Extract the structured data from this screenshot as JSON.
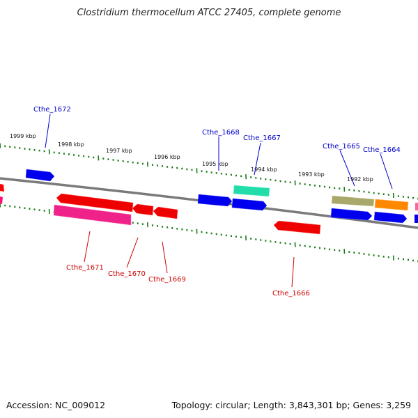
{
  "title": "Clostridium thermocellum ATCC 27405, complete genome",
  "footer": {
    "accession": "Accession: NC_009012",
    "info": "Topology: circular; Length: 3,843,301 bp; Genes: 3,259"
  },
  "colors": {
    "backbone": "#808080",
    "ticks": "#1a7a1a",
    "top_label": "#0000cc",
    "bottom_label": "#cc0000"
  },
  "kbp_labels": [
    "1999 kbp",
    "1998 kbp",
    "1997 kbp",
    "1996 kbp",
    "1995 kbp",
    "1994 kbp",
    "1993 kbp",
    "1992 kbp"
  ],
  "gene_labels_top": [
    "Cthe_1672",
    "Cthe_1668",
    "Cthe_1667",
    "Cthe_1665",
    "Cthe_1664"
  ],
  "gene_labels_bottom": [
    "Cthe_1671",
    "Cthe_1670",
    "Cthe_1669",
    "Cthe_1666"
  ]
}
